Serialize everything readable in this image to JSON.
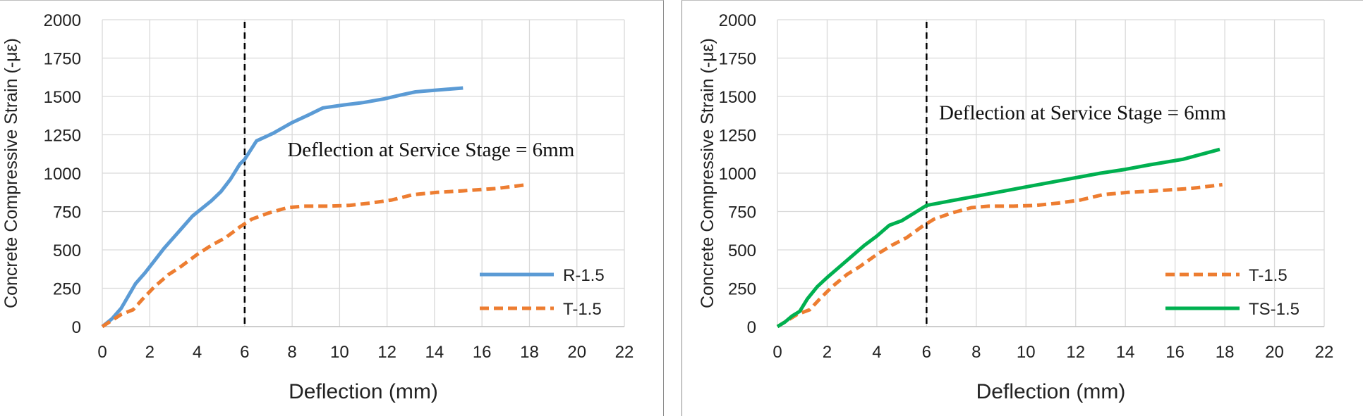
{
  "chart_data": [
    {
      "type": "line",
      "xlabel": "Deflection (mm)",
      "ylabel": "Concrete Compressive Strain (-με)",
      "xlim": [
        0,
        22
      ],
      "ylim": [
        0,
        2000
      ],
      "xticks": [
        "0",
        "2",
        "4",
        "6",
        "8",
        "10",
        "12",
        "14",
        "16",
        "18",
        "20",
        "22"
      ],
      "yticks": [
        "0",
        "250",
        "500",
        "750",
        "1000",
        "1250",
        "1500",
        "1750",
        "2000"
      ],
      "grid": true,
      "legend_position": "bottom-right",
      "vline": {
        "x": 6,
        "style": "dashed",
        "color": "#000000"
      },
      "annotation": {
        "text": "Deflection at Service Stage = 6mm",
        "x": 7.8,
        "y": 1110
      },
      "series": [
        {
          "name": "R-1.5",
          "color": "#5b9bd5",
          "dash": "solid",
          "points": [
            [
              0,
              0
            ],
            [
              0.4,
              50
            ],
            [
              0.8,
              120
            ],
            [
              1.1,
              200
            ],
            [
              1.4,
              280
            ],
            [
              1.8,
              350
            ],
            [
              2.2,
              430
            ],
            [
              2.6,
              510
            ],
            [
              3.0,
              580
            ],
            [
              3.4,
              650
            ],
            [
              3.8,
              720
            ],
            [
              4.2,
              770
            ],
            [
              4.6,
              820
            ],
            [
              5.0,
              880
            ],
            [
              5.4,
              960
            ],
            [
              5.8,
              1060
            ],
            [
              6.0,
              1090
            ],
            [
              6.5,
              1210
            ],
            [
              7.2,
              1260
            ],
            [
              8.0,
              1330
            ],
            [
              8.7,
              1380
            ],
            [
              9.3,
              1425
            ],
            [
              10.2,
              1445
            ],
            [
              11.0,
              1460
            ],
            [
              11.9,
              1485
            ],
            [
              12.6,
              1510
            ],
            [
              13.2,
              1530
            ],
            [
              14.0,
              1540
            ],
            [
              15.2,
              1555
            ]
          ]
        },
        {
          "name": "T-1.5",
          "color": "#ed7d31",
          "dash": "dashed",
          "points": [
            [
              0,
              0
            ],
            [
              0.4,
              40
            ],
            [
              0.8,
              80
            ],
            [
              1.3,
              110
            ],
            [
              1.7,
              180
            ],
            [
              2.2,
              260
            ],
            [
              2.8,
              340
            ],
            [
              3.3,
              390
            ],
            [
              4.0,
              470
            ],
            [
              4.6,
              530
            ],
            [
              5.2,
              580
            ],
            [
              5.8,
              650
            ],
            [
              6.3,
              700
            ],
            [
              7.0,
              740
            ],
            [
              7.8,
              775
            ],
            [
              8.5,
              785
            ],
            [
              9.5,
              785
            ],
            [
              10.4,
              790
            ],
            [
              11.3,
              805
            ],
            [
              12.2,
              825
            ],
            [
              13.1,
              860
            ],
            [
              14.1,
              875
            ],
            [
              15.2,
              885
            ],
            [
              16.6,
              900
            ],
            [
              17.9,
              925
            ]
          ]
        }
      ]
    },
    {
      "type": "line",
      "xlabel": "Deflection (mm)",
      "ylabel": "Concrete Compressive Strain (-με)",
      "xlim": [
        0,
        22
      ],
      "ylim": [
        0,
        2000
      ],
      "xticks": [
        "0",
        "2",
        "4",
        "6",
        "8",
        "10",
        "12",
        "14",
        "16",
        "18",
        "20",
        "22"
      ],
      "yticks": [
        "0",
        "250",
        "500",
        "750",
        "1000",
        "1250",
        "1500",
        "1750",
        "2000"
      ],
      "grid": true,
      "legend_position": "bottom-right",
      "vline": {
        "x": 6,
        "style": "dashed",
        "color": "#000000"
      },
      "annotation": {
        "text": "Deflection at Service Stage = 6mm",
        "x": 6.5,
        "y": 1350
      },
      "series": [
        {
          "name": "T-1.5",
          "color": "#ed7d31",
          "dash": "dashed",
          "points": [
            [
              0,
              0
            ],
            [
              0.4,
              40
            ],
            [
              0.8,
              80
            ],
            [
              1.3,
              110
            ],
            [
              1.7,
              180
            ],
            [
              2.2,
              260
            ],
            [
              2.8,
              340
            ],
            [
              3.3,
              390
            ],
            [
              4.0,
              470
            ],
            [
              4.6,
              530
            ],
            [
              5.2,
              580
            ],
            [
              5.8,
              650
            ],
            [
              6.3,
              700
            ],
            [
              7.0,
              740
            ],
            [
              7.8,
              775
            ],
            [
              8.5,
              785
            ],
            [
              9.5,
              785
            ],
            [
              10.4,
              790
            ],
            [
              11.3,
              805
            ],
            [
              12.2,
              825
            ],
            [
              13.1,
              860
            ],
            [
              14.1,
              875
            ],
            [
              15.2,
              885
            ],
            [
              16.6,
              900
            ],
            [
              17.9,
              925
            ]
          ]
        },
        {
          "name": "TS-1.5",
          "color": "#00b050",
          "dash": "solid",
          "points": [
            [
              0,
              0
            ],
            [
              0.3,
              30
            ],
            [
              0.6,
              70
            ],
            [
              0.9,
              100
            ],
            [
              1.2,
              180
            ],
            [
              1.6,
              260
            ],
            [
              2.0,
              320
            ],
            [
              2.5,
              390
            ],
            [
              3.0,
              460
            ],
            [
              3.5,
              530
            ],
            [
              4.0,
              590
            ],
            [
              4.5,
              660
            ],
            [
              5.0,
              690
            ],
            [
              5.5,
              740
            ],
            [
              6.0,
              790
            ],
            [
              7.0,
              820
            ],
            [
              8.0,
              850
            ],
            [
              9.0,
              880
            ],
            [
              10.0,
              910
            ],
            [
              11.0,
              940
            ],
            [
              12.0,
              970
            ],
            [
              13.0,
              1000
            ],
            [
              14.0,
              1025
            ],
            [
              15.0,
              1055
            ],
            [
              16.3,
              1090
            ],
            [
              17.8,
              1155
            ]
          ]
        }
      ]
    }
  ]
}
